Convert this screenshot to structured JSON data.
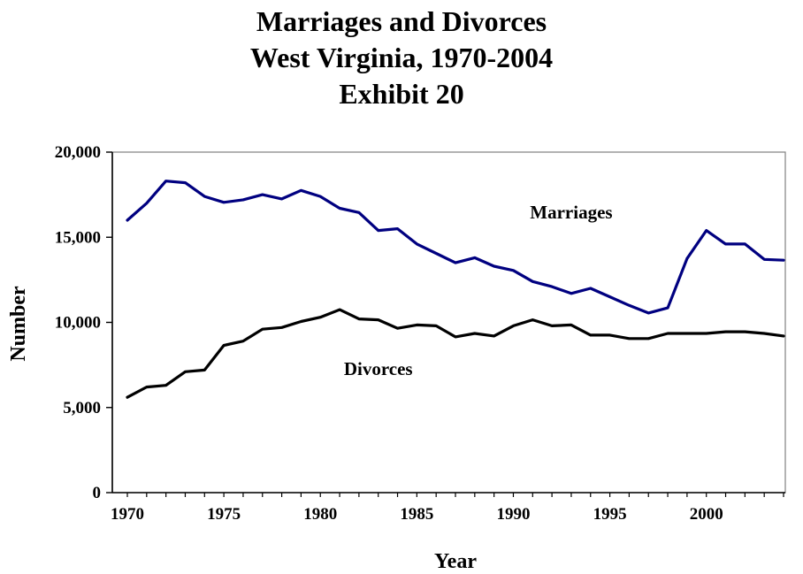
{
  "chart_data": {
    "type": "line",
    "title_lines": [
      "Marriages and Divorces",
      "West Virginia, 1970-2004",
      "Exhibit 20"
    ],
    "xlabel": "Year",
    "ylabel": "Number",
    "xlim": [
      1970,
      2004
    ],
    "ylim": [
      0,
      20000
    ],
    "x_ticks": [
      1970,
      1975,
      1980,
      1985,
      1990,
      1995,
      2000
    ],
    "x_tick_labels": [
      "1970",
      "1975",
      "1980",
      "1985",
      "1990",
      "1995",
      "2000"
    ],
    "y_ticks": [
      0,
      5000,
      10000,
      15000,
      20000
    ],
    "y_tick_labels": [
      "0",
      "5,000",
      "10,000",
      "15,000",
      "20,000"
    ],
    "grid": false,
    "legend": "none",
    "x": [
      1970,
      1971,
      1972,
      1973,
      1974,
      1975,
      1976,
      1977,
      1978,
      1979,
      1980,
      1981,
      1982,
      1983,
      1984,
      1985,
      1986,
      1987,
      1988,
      1989,
      1990,
      1991,
      1992,
      1993,
      1994,
      1995,
      1996,
      1997,
      1998,
      1999,
      2000,
      2001,
      2002,
      2003,
      2004
    ],
    "series": [
      {
        "name": "Marriages",
        "color": "#000080",
        "label_anchor": [
          1993,
          16100
        ],
        "values": [
          16000,
          17000,
          18300,
          18200,
          17400,
          17050,
          17200,
          17500,
          17250,
          17750,
          17400,
          16700,
          16450,
          15400,
          15500,
          14600,
          14050,
          13500,
          13800,
          13300,
          13050,
          12400,
          12100,
          11700,
          12000,
          11500,
          11000,
          10550,
          10850,
          13750,
          15400,
          14600,
          14600,
          13700,
          13650
        ]
      },
      {
        "name": "Divorces",
        "color": "#000000",
        "label_anchor": [
          1983,
          6900
        ],
        "values": [
          5600,
          6200,
          6300,
          7100,
          7200,
          8650,
          8900,
          9600,
          9700,
          10050,
          10300,
          10750,
          10200,
          10150,
          9650,
          9850,
          9800,
          9150,
          9350,
          9200,
          9800,
          10150,
          9800,
          9850,
          9250,
          9250,
          9050,
          9050,
          9350,
          9350,
          9350,
          9450,
          9450,
          9350,
          9200
        ]
      }
    ]
  }
}
